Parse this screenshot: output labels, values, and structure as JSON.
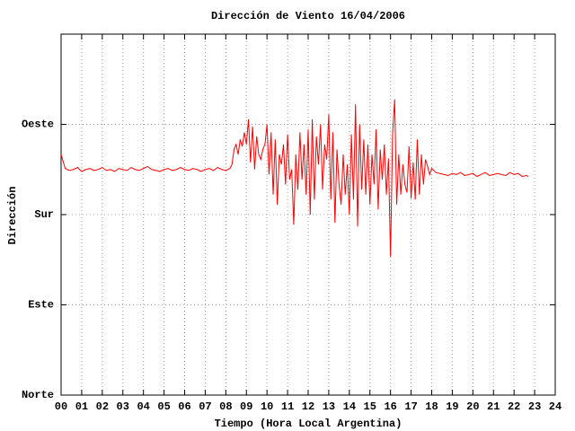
{
  "chart_data": {
    "type": "line",
    "title": "Dirección de Viento 16/04/2006",
    "x_label": "Tiempo (Hora Local Argentina)",
    "y_label": "Dirección",
    "color": "#ff0000",
    "grid": true,
    "xlim": [
      0,
      24
    ],
    "ylim": [
      0,
      360
    ],
    "xticks": [
      {
        "value": 0,
        "label": "00"
      },
      {
        "value": 1,
        "label": "01"
      },
      {
        "value": 2,
        "label": "02"
      },
      {
        "value": 3,
        "label": "03"
      },
      {
        "value": 4,
        "label": "04"
      },
      {
        "value": 5,
        "label": "05"
      },
      {
        "value": 6,
        "label": "06"
      },
      {
        "value": 7,
        "label": "07"
      },
      {
        "value": 8,
        "label": "08"
      },
      {
        "value": 9,
        "label": "09"
      },
      10,
      11,
      12,
      13,
      14,
      15,
      16,
      17,
      18,
      19,
      20,
      21,
      22,
      23,
      24
    ],
    "yticks": [
      {
        "value": 0,
        "label": "Norte"
      },
      {
        "value": 90,
        "label": "Este"
      },
      {
        "value": 180,
        "label": "Sur"
      },
      {
        "value": 270,
        "label": "Oeste"
      }
    ],
    "x": [
      0,
      0.2,
      0.4,
      0.6,
      0.8,
      1,
      1.2,
      1.4,
      1.6,
      1.8,
      2,
      2.2,
      2.4,
      2.6,
      2.8,
      3,
      3.2,
      3.4,
      3.6,
      3.8,
      4,
      4.2,
      4.4,
      4.6,
      4.8,
      5,
      5.2,
      5.4,
      5.6,
      5.8,
      6,
      6.2,
      6.4,
      6.6,
      6.8,
      7,
      7.2,
      7.4,
      7.6,
      7.8,
      8,
      8.2,
      8.3,
      8.4,
      8.5,
      8.6,
      8.7,
      8.8,
      8.9,
      9,
      9.1,
      9.2,
      9.3,
      9.4,
      9.5,
      9.6,
      9.7,
      9.8,
      9.9,
      10,
      10.1,
      10.2,
      10.3,
      10.4,
      10.5,
      10.6,
      10.7,
      10.8,
      10.9,
      11,
      11.1,
      11.2,
      11.3,
      11.4,
      11.5,
      11.6,
      11.7,
      11.8,
      11.9,
      12,
      12.1,
      12.2,
      12.3,
      12.4,
      12.5,
      12.6,
      12.7,
      12.8,
      12.9,
      13,
      13.1,
      13.2,
      13.3,
      13.4,
      13.5,
      13.6,
      13.7,
      13.8,
      13.9,
      14,
      14.1,
      14.2,
      14.3,
      14.4,
      14.5,
      14.6,
      14.7,
      14.8,
      14.9,
      15,
      15.1,
      15.2,
      15.3,
      15.4,
      15.5,
      15.6,
      15.7,
      15.8,
      15.9,
      16,
      16.1,
      16.2,
      16.3,
      16.4,
      16.5,
      16.6,
      16.7,
      16.8,
      16.9,
      17,
      17.1,
      17.2,
      17.3,
      17.4,
      17.5,
      17.6,
      17.7,
      17.8,
      17.9,
      18,
      18.2,
      18.4,
      18.6,
      18.8,
      19,
      19.2,
      19.4,
      19.6,
      19.8,
      20,
      20.2,
      20.4,
      20.6,
      20.8,
      21,
      21.2,
      21.4,
      21.6,
      21.8,
      22,
      22.2,
      22.4,
      22.6,
      22.7
    ],
    "values": [
      240,
      226,
      224,
      225,
      227,
      223,
      225,
      226,
      224,
      225,
      227,
      224,
      225,
      223,
      226,
      225,
      224,
      227,
      225,
      224,
      226,
      228,
      225,
      224,
      223,
      225,
      226,
      224,
      225,
      227,
      225,
      224,
      226,
      225,
      223,
      225,
      226,
      224,
      227,
      225,
      224,
      226,
      230,
      245,
      250,
      240,
      255,
      248,
      262,
      250,
      275,
      232,
      268,
      225,
      258,
      240,
      235,
      245,
      250,
      270,
      220,
      262,
      200,
      255,
      190,
      240,
      230,
      250,
      210,
      260,
      215,
      225,
      170,
      240,
      205,
      262,
      215,
      250,
      200,
      265,
      180,
      275,
      195,
      258,
      230,
      270,
      205,
      250,
      235,
      280,
      195,
      262,
      172,
      245,
      210,
      190,
      240,
      200,
      230,
      180,
      260,
      195,
      290,
      168,
      270,
      205,
      255,
      200,
      250,
      190,
      240,
      210,
      265,
      185,
      245,
      215,
      250,
      200,
      236,
      138,
      260,
      295,
      190,
      240,
      200,
      230,
      210,
      202,
      248,
      196,
      232,
      195,
      255,
      200,
      240,
      210,
      235,
      228,
      220,
      226,
      222,
      221,
      220,
      219,
      221,
      220,
      222,
      219,
      220,
      221,
      218,
      220,
      222,
      219,
      220,
      221,
      220,
      219,
      222,
      220,
      221,
      218,
      219,
      218
    ]
  }
}
